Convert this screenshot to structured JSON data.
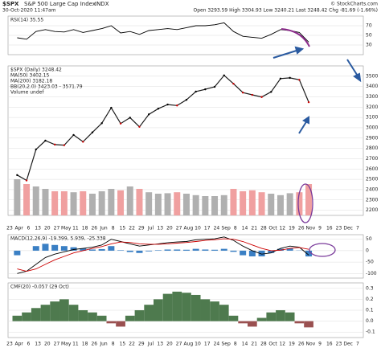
{
  "chart_data": {
    "type": "stock",
    "header": {
      "symbol": "$SPX",
      "name": "S&P 500 Large Cap Index",
      "exchange": "INDX",
      "timestamp": "30-Oct-2020 11:47am",
      "quote": "Open 3293.59  High 3304.93  Low 3240.21  Last 3248.42  Chg -81.69 (-1.66%)",
      "credit": "© StockCharts.com"
    },
    "x_axis_labels": [
      "23",
      "Apr",
      "6",
      "13",
      "20",
      "27",
      "May",
      "11",
      "18",
      "26",
      "Jun",
      "8",
      "15",
      "22",
      "29",
      "Jul",
      "13",
      "20",
      "27",
      "Aug",
      "10",
      "17",
      "24",
      "Sep",
      "8",
      "14",
      "21",
      "28",
      "Oct",
      "12",
      "19",
      "26",
      "Nov",
      "9",
      "16",
      "23",
      "Dec",
      "7"
    ],
    "rsi": {
      "label": "RSI(14) 35.55",
      "color": "#000000",
      "values": [
        45,
        42,
        58,
        62,
        58,
        57,
        62,
        56,
        60,
        64,
        70,
        55,
        58,
        52,
        60,
        62,
        64,
        62,
        66,
        70,
        70,
        72,
        76,
        58,
        48,
        46,
        44,
        52,
        62,
        60,
        56,
        36
      ],
      "ylim": [
        10,
        90
      ],
      "yticks": [
        70,
        50,
        30
      ]
    },
    "price": {
      "legend": [
        "$SPX (Daily) 3248.42",
        "MA(50) 3402.15",
        "MA(200) 3182.18",
        "BB(20,2.0) 3423.03 - 3571.79",
        "Volume undef"
      ],
      "color": "#1a1a1a",
      "values": [
        2541,
        2489,
        2790,
        2875,
        2837,
        2831,
        2930,
        2864,
        2955,
        3044,
        3194,
        3041,
        3098,
        3009,
        3130,
        3185,
        3225,
        3216,
        3271,
        3351,
        3373,
        3397,
        3508,
        3427,
        3341,
        3319,
        3298,
        3348,
        3477,
        3484,
        3465,
        3248
      ],
      "ylim": [
        2150,
        3600
      ],
      "yticks": [
        3500,
        3400,
        3300,
        3200,
        3100,
        3000,
        2900,
        2800,
        2700,
        2600,
        2500,
        2400,
        2300,
        2200
      ],
      "volume": {
        "values": [
          7.5,
          6.5,
          6,
          5.5,
          5,
          5,
          4.8,
          5,
          4.5,
          5,
          5.5,
          5.2,
          6,
          5.5,
          4.8,
          4.5,
          4.6,
          4.8,
          4.5,
          4.2,
          4,
          4,
          4.2,
          5.5,
          5,
          5.2,
          4.8,
          4.5,
          4.2,
          4.6,
          4.8,
          6.5
        ],
        "vlim": [
          0,
          10
        ],
        "up_color": "#b0b0b0",
        "down_color": "#f0a0a0"
      }
    },
    "macd": {
      "label": "MACD(12,26,9) -19.399, 5.939, -25.338",
      "macd_color": "#000000",
      "signal_color": "#cc0000",
      "hist_color": "#3a7fc4",
      "macd": [
        -100,
        -90,
        -60,
        -30,
        -15,
        -5,
        5,
        10,
        15,
        25,
        50,
        40,
        30,
        20,
        25,
        30,
        35,
        38,
        40,
        48,
        50,
        52,
        60,
        45,
        20,
        0,
        -15,
        -10,
        10,
        20,
        15,
        -19.399
      ],
      "signal": [
        -80,
        -90,
        -80,
        -60,
        -40,
        -25,
        -10,
        0,
        10,
        18,
        30,
        38,
        36,
        30,
        28,
        28,
        30,
        33,
        36,
        40,
        45,
        48,
        52,
        50,
        40,
        25,
        10,
        0,
        2,
        10,
        14,
        5.939
      ],
      "histogram": [
        -20,
        0,
        20,
        30,
        25,
        20,
        15,
        10,
        5,
        7,
        20,
        2,
        -6,
        -10,
        -3,
        2,
        5,
        5,
        4,
        8,
        5,
        4,
        8,
        -5,
        -20,
        -25,
        -25,
        -10,
        8,
        10,
        1,
        -25.338
      ],
      "ylim": [
        -120,
        70
      ],
      "yticks": [
        50,
        0,
        -50,
        -100
      ]
    },
    "cmf": {
      "label": "CMF(20) -0.057 (29 Oct)",
      "pos_color": "#4e7a4e",
      "neg_color": "#9a5050",
      "values": [
        0.05,
        0.08,
        0.12,
        0.15,
        0.18,
        0.2,
        0.15,
        0.1,
        0.08,
        0.05,
        -0.02,
        -0.05,
        0.05,
        0.1,
        0.15,
        0.2,
        0.25,
        0.27,
        0.26,
        0.24,
        0.2,
        0.18,
        0.15,
        0.05,
        -0.02,
        -0.05,
        0.03,
        0.08,
        0.1,
        0.08,
        -0.02,
        -0.057
      ],
      "ylim": [
        -0.15,
        0.35
      ],
      "yticks": [
        0.3,
        0.2,
        0.1,
        {
          "value": 0,
          "label": "0.0"
        },
        -0.1
      ]
    }
  }
}
